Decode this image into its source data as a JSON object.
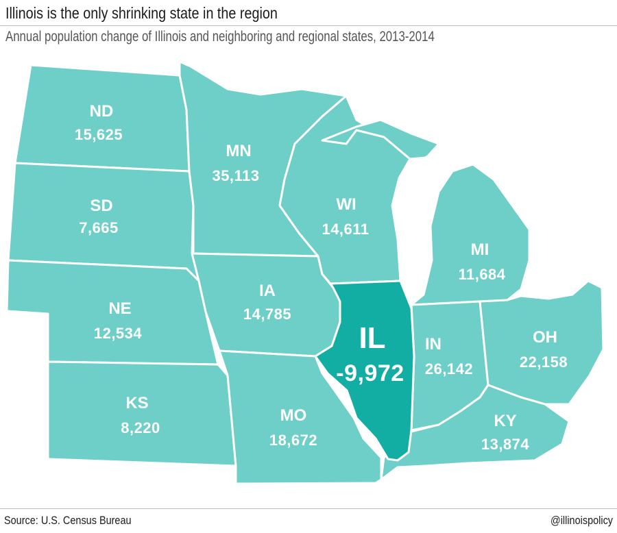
{
  "header": {
    "title": "Illinois is the only shrinking state in the region",
    "subtitle": "Annual population change of Illinois and neighboring and regional states, 2013-2014"
  },
  "colors": {
    "state_fill": "#6ecfc8",
    "highlight_fill": "#12aea3",
    "border": "#ffffff"
  },
  "states": {
    "nd": {
      "abbr": "ND",
      "value": "15,625"
    },
    "sd": {
      "abbr": "SD",
      "value": "7,665"
    },
    "ne": {
      "abbr": "NE",
      "value": "12,534"
    },
    "ks": {
      "abbr": "KS",
      "value": "8,220"
    },
    "mn": {
      "abbr": "MN",
      "value": "35,113"
    },
    "ia": {
      "abbr": "IA",
      "value": "14,785"
    },
    "mo": {
      "abbr": "MO",
      "value": "18,672"
    },
    "wi": {
      "abbr": "WI",
      "value": "14,611"
    },
    "il": {
      "abbr": "IL",
      "value": "-9,972"
    },
    "mi": {
      "abbr": "MI",
      "value": "11,684"
    },
    "in": {
      "abbr": "IN",
      "value": "26,142"
    },
    "oh": {
      "abbr": "OH",
      "value": "22,158"
    },
    "ky": {
      "abbr": "KY",
      "value": "13,874"
    }
  },
  "footer": {
    "source": "Source: U.S. Census Bureau",
    "handle": "@illinoispolicy"
  }
}
